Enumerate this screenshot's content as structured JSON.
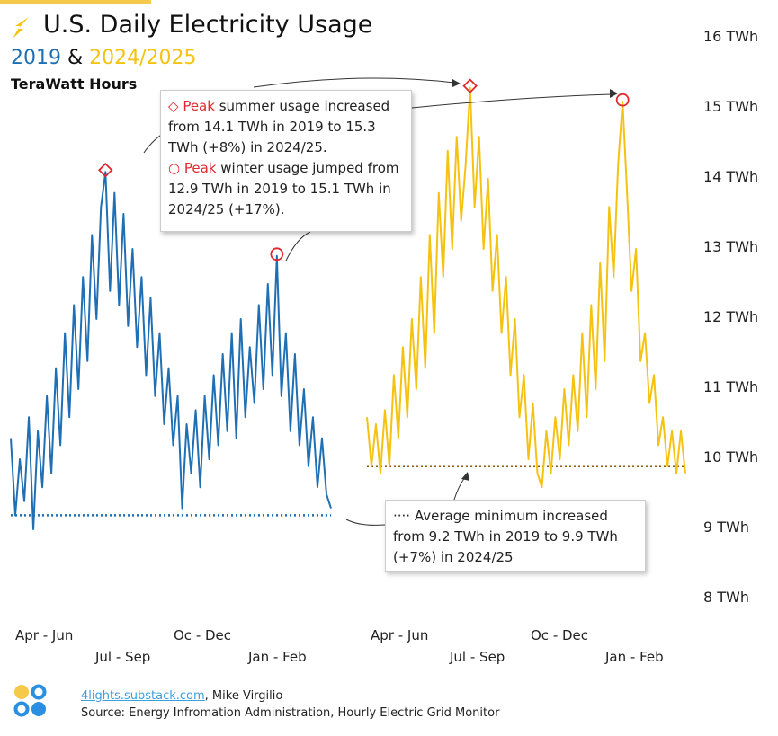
{
  "header": {
    "title": "U.S. Daily Electricity Usage",
    "year_a": "2019",
    "amp": "&",
    "year_b": "2024/2025",
    "unit": "TeraWatt Hours"
  },
  "annotations": {
    "summer_word": "Peak",
    "summer_text": " summer usage increased from 14.1 TWh in 2019 to 15.3 TWh (+8%) in 2024/25.",
    "winter_word": "Peak",
    "winter_text": " winter usage jumped from 12.9 TWh in 2019 to 15.1 TWh in 2024/25 (+17%).",
    "min_text": "Average minimum increased from 9.2 TWh in 2019 to 9.9 TWh (+7%) in 2024/25"
  },
  "footer": {
    "link": "4lights.substack.com",
    "author": ", Mike Virgilio",
    "source": "Source: Energy Infromation Administration, Hourly Electric Grid Monitor"
  },
  "colors": {
    "y2019": "#1f6fb5",
    "y2024": "#f5c211",
    "avg2024": "#8a5a10",
    "peak": "#e0282e"
  },
  "chart_data": {
    "type": "line",
    "title": "U.S. Daily Electricity Usage",
    "ylabel": "TeraWatt Hours",
    "ylim": [
      8,
      16
    ],
    "yticks": [
      "16 TWh",
      "15 TWh",
      "14 TWh",
      "13 TWh",
      "12 TWh",
      "11 TWh",
      "10 TWh",
      "9 TWh",
      "8 TWh"
    ],
    "xticks_row1": [
      "Apr - Jun",
      "Oc - Dec",
      "Apr - Jun",
      "Oc - Dec"
    ],
    "xticks_row2": [
      "Jul - Sep",
      "Jan - Feb",
      "Jul - Sep",
      "Jan - Feb"
    ],
    "series": [
      {
        "name": "2019",
        "peak_summer": 14.1,
        "peak_winter": 12.9,
        "avg_min": 9.2,
        "values": [
          10.3,
          9.2,
          10.0,
          9.4,
          10.6,
          9.0,
          10.4,
          9.6,
          10.9,
          9.8,
          11.3,
          10.2,
          11.8,
          10.6,
          12.2,
          11.0,
          12.6,
          11.4,
          13.2,
          12.0,
          13.6,
          14.1,
          12.4,
          13.8,
          12.2,
          13.5,
          11.9,
          13.0,
          11.6,
          12.6,
          11.2,
          12.3,
          10.9,
          11.8,
          10.5,
          11.3,
          10.2,
          10.9,
          9.3,
          10.5,
          9.8,
          10.7,
          9.6,
          10.9,
          10.0,
          11.2,
          10.2,
          11.5,
          10.4,
          11.8,
          10.3,
          12.0,
          10.6,
          11.6,
          10.8,
          12.2,
          11.0,
          12.5,
          11.2,
          12.9,
          10.9,
          11.8,
          10.4,
          11.5,
          10.2,
          11.0,
          9.9,
          10.6,
          9.6,
          10.3,
          9.5,
          9.3
        ]
      },
      {
        "name": "2024/25",
        "peak_summer": 15.3,
        "peak_winter": 15.1,
        "avg_min": 9.9,
        "values": [
          10.6,
          9.9,
          10.5,
          9.8,
          10.7,
          9.9,
          11.2,
          10.3,
          11.6,
          10.6,
          12.0,
          11.0,
          12.6,
          11.3,
          13.2,
          11.8,
          13.8,
          12.6,
          14.4,
          13.0,
          14.6,
          13.4,
          14.2,
          15.3,
          13.6,
          14.6,
          13.0,
          14.0,
          12.4,
          13.2,
          11.8,
          12.6,
          11.2,
          12.0,
          10.6,
          11.2,
          10.0,
          10.8,
          9.8,
          9.6,
          10.4,
          9.8,
          10.6,
          10.0,
          11.0,
          10.2,
          11.2,
          10.4,
          11.8,
          10.6,
          12.2,
          11.0,
          12.8,
          11.4,
          13.6,
          12.6,
          14.2,
          15.1,
          13.8,
          12.4,
          13.0,
          11.4,
          11.8,
          10.8,
          11.2,
          10.2,
          10.6,
          9.9,
          10.4,
          9.8,
          10.4,
          9.8
        ]
      }
    ]
  }
}
